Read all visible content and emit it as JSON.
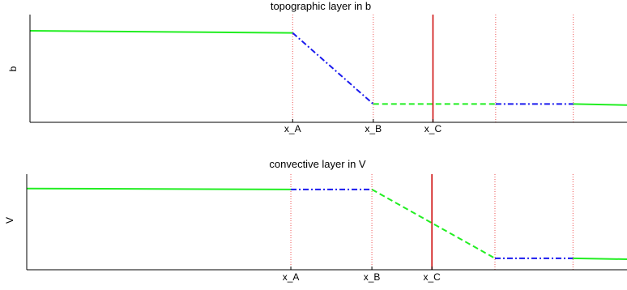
{
  "colors": {
    "solid": "#22ee22",
    "dashed": "#22ee22",
    "dashdot": "#1a1aee",
    "marker": "#cc0000",
    "guide": "#ee5555",
    "axis": "#000000"
  },
  "chart_data": [
    {
      "type": "line",
      "title": "topographic layer in b",
      "ylabel": "b",
      "xlabel": "",
      "x_ticks": [
        "x_A",
        "x_B",
        "x_C"
      ],
      "segments": [
        {
          "style": "solid",
          "x": [
            0,
            0.44
          ],
          "y": [
            0.85,
            0.83
          ]
        },
        {
          "style": "dashdot",
          "x": [
            0.44,
            0.575
          ],
          "y": [
            0.83,
            0.17
          ]
        },
        {
          "style": "dashed",
          "x": [
            0.575,
            0.78
          ],
          "y": [
            0.17,
            0.17
          ]
        },
        {
          "style": "dashdot",
          "x": [
            0.78,
            0.91
          ],
          "y": [
            0.17,
            0.17
          ]
        },
        {
          "style": "solid",
          "x": [
            0.91,
            1.0
          ],
          "y": [
            0.17,
            0.16
          ]
        }
      ],
      "guides": [
        0.44,
        0.575,
        0.78,
        0.91
      ],
      "marker": 0.675,
      "tick_positions": [
        0.44,
        0.575,
        0.675
      ]
    },
    {
      "type": "line",
      "title": "convective layer in V",
      "ylabel": "V",
      "xlabel": "",
      "x_ticks": [
        "x_A",
        "x_B",
        "x_C"
      ],
      "segments": [
        {
          "style": "solid",
          "x": [
            0,
            0.44
          ],
          "y": [
            0.85,
            0.84
          ]
        },
        {
          "style": "dashdot",
          "x": [
            0.44,
            0.575
          ],
          "y": [
            0.84,
            0.84
          ]
        },
        {
          "style": "dashed",
          "x": [
            0.575,
            0.78
          ],
          "y": [
            0.84,
            0.12
          ]
        },
        {
          "style": "dashdot",
          "x": [
            0.78,
            0.91
          ],
          "y": [
            0.12,
            0.12
          ]
        },
        {
          "style": "solid",
          "x": [
            0.91,
            1.0
          ],
          "y": [
            0.12,
            0.11
          ]
        }
      ],
      "guides": [
        0.44,
        0.575,
        0.78,
        0.91
      ],
      "marker": 0.675,
      "tick_positions": [
        0.44,
        0.575,
        0.675
      ]
    }
  ]
}
